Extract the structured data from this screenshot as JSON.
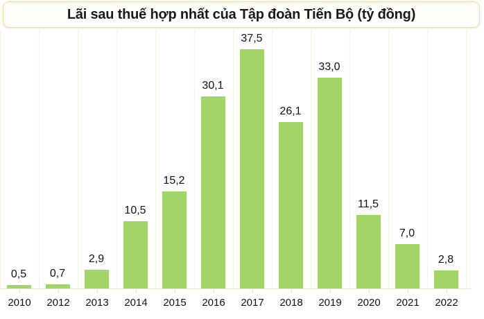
{
  "header": {
    "title": "Lãi sau thuế hợp nhất của Tập đoàn Tiến Bộ (tỷ đồng)"
  },
  "colors": {
    "bar": "#a3d46a",
    "title_border": "#f2dc9a",
    "gridline": "#f5f1df"
  },
  "chart_data": {
    "type": "bar",
    "title": "Lãi sau thuế hợp nhất của Tập đoàn Tiến Bộ (tỷ đồng)",
    "xlabel": "",
    "ylabel": "",
    "categories": [
      "2010",
      "2012",
      "2013",
      "2014",
      "2015",
      "2016",
      "2017",
      "2018",
      "2019",
      "2020",
      "2021",
      "2022"
    ],
    "values": [
      0.5,
      0.7,
      2.9,
      10.5,
      15.2,
      30.1,
      37.5,
      26.1,
      33.0,
      11.5,
      7.0,
      2.8
    ],
    "value_labels": [
      "0,5",
      "0,7",
      "2,9",
      "10,5",
      "15,2",
      "30,1",
      "37,5",
      "26,1",
      "33,0",
      "11,5",
      "7,0",
      "2,8"
    ],
    "ylim": [
      0,
      40
    ],
    "grid": "vertical",
    "legend": "none",
    "data_labels": true
  }
}
